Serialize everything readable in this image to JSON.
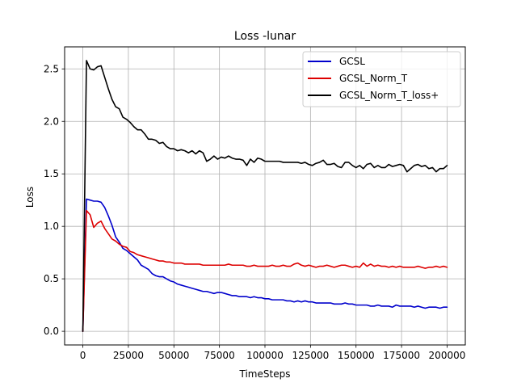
{
  "chart_data": {
    "type": "line",
    "title": "Loss -lunar",
    "xlabel": "TimeSteps",
    "ylabel": "Loss",
    "xlim": [
      -10000,
      210000
    ],
    "ylim": [
      -0.13,
      2.71
    ],
    "xticks": [
      0,
      25000,
      50000,
      75000,
      100000,
      125000,
      150000,
      175000,
      200000
    ],
    "yticks": [
      0.0,
      0.5,
      1.0,
      1.5,
      2.0,
      2.5
    ],
    "xtick_labels": [
      "0",
      "25000",
      "50000",
      "75000",
      "100000",
      "125000",
      "150000",
      "175000",
      "200000"
    ],
    "ytick_labels": [
      "0.0",
      "0.5",
      "1.0",
      "1.5",
      "2.0",
      "2.5"
    ],
    "grid": true,
    "legend_position": "top-right",
    "series": [
      {
        "name": "GCSL",
        "color": "#0000cc",
        "points": [
          [
            0,
            0.0
          ],
          [
            2000,
            1.26
          ],
          [
            4000,
            1.25
          ],
          [
            6000,
            1.24
          ],
          [
            8000,
            1.24
          ],
          [
            10000,
            1.23
          ],
          [
            12000,
            1.18
          ],
          [
            14000,
            1.1
          ],
          [
            16000,
            1.01
          ],
          [
            18000,
            0.9
          ],
          [
            20000,
            0.85
          ],
          [
            22000,
            0.79
          ],
          [
            24000,
            0.77
          ],
          [
            26000,
            0.74
          ],
          [
            28000,
            0.71
          ],
          [
            30000,
            0.68
          ],
          [
            32000,
            0.63
          ],
          [
            34000,
            0.61
          ],
          [
            36000,
            0.59
          ],
          [
            38000,
            0.55
          ],
          [
            40000,
            0.53
          ],
          [
            42000,
            0.52
          ],
          [
            44000,
            0.52
          ],
          [
            46000,
            0.5
          ],
          [
            48000,
            0.48
          ],
          [
            50000,
            0.47
          ],
          [
            52000,
            0.45
          ],
          [
            54000,
            0.44
          ],
          [
            56000,
            0.43
          ],
          [
            58000,
            0.42
          ],
          [
            60000,
            0.41
          ],
          [
            62000,
            0.4
          ],
          [
            64000,
            0.39
          ],
          [
            66000,
            0.38
          ],
          [
            68000,
            0.38
          ],
          [
            70000,
            0.37
          ],
          [
            72000,
            0.36
          ],
          [
            74000,
            0.37
          ],
          [
            76000,
            0.37
          ],
          [
            78000,
            0.36
          ],
          [
            80000,
            0.35
          ],
          [
            82000,
            0.34
          ],
          [
            84000,
            0.34
          ],
          [
            86000,
            0.33
          ],
          [
            88000,
            0.33
          ],
          [
            90000,
            0.33
          ],
          [
            92000,
            0.32
          ],
          [
            94000,
            0.33
          ],
          [
            96000,
            0.32
          ],
          [
            98000,
            0.32
          ],
          [
            100000,
            0.31
          ],
          [
            102000,
            0.31
          ],
          [
            104000,
            0.3
          ],
          [
            106000,
            0.3
          ],
          [
            108000,
            0.3
          ],
          [
            110000,
            0.3
          ],
          [
            112000,
            0.29
          ],
          [
            114000,
            0.29
          ],
          [
            116000,
            0.28
          ],
          [
            118000,
            0.29
          ],
          [
            120000,
            0.28
          ],
          [
            122000,
            0.29
          ],
          [
            124000,
            0.28
          ],
          [
            126000,
            0.28
          ],
          [
            128000,
            0.27
          ],
          [
            130000,
            0.27
          ],
          [
            132000,
            0.27
          ],
          [
            134000,
            0.27
          ],
          [
            136000,
            0.27
          ],
          [
            138000,
            0.26
          ],
          [
            140000,
            0.26
          ],
          [
            142000,
            0.26
          ],
          [
            144000,
            0.27
          ],
          [
            146000,
            0.26
          ],
          [
            148000,
            0.26
          ],
          [
            150000,
            0.25
          ],
          [
            152000,
            0.25
          ],
          [
            154000,
            0.25
          ],
          [
            156000,
            0.25
          ],
          [
            158000,
            0.24
          ],
          [
            160000,
            0.24
          ],
          [
            162000,
            0.25
          ],
          [
            164000,
            0.24
          ],
          [
            166000,
            0.24
          ],
          [
            168000,
            0.24
          ],
          [
            170000,
            0.23
          ],
          [
            172000,
            0.25
          ],
          [
            174000,
            0.24
          ],
          [
            176000,
            0.24
          ],
          [
            178000,
            0.24
          ],
          [
            180000,
            0.24
          ],
          [
            182000,
            0.23
          ],
          [
            184000,
            0.24
          ],
          [
            186000,
            0.23
          ],
          [
            188000,
            0.22
          ],
          [
            190000,
            0.23
          ],
          [
            192000,
            0.23
          ],
          [
            194000,
            0.23
          ],
          [
            196000,
            0.22
          ],
          [
            198000,
            0.23
          ],
          [
            200000,
            0.23
          ]
        ]
      },
      {
        "name": "GCSL_Norm_T",
        "color": "#dd0000",
        "points": [
          [
            0,
            0.0
          ],
          [
            2000,
            1.15
          ],
          [
            4000,
            1.11
          ],
          [
            6000,
            0.99
          ],
          [
            8000,
            1.03
          ],
          [
            10000,
            1.05
          ],
          [
            12000,
            0.98
          ],
          [
            14000,
            0.93
          ],
          [
            16000,
            0.88
          ],
          [
            18000,
            0.86
          ],
          [
            20000,
            0.83
          ],
          [
            22000,
            0.81
          ],
          [
            24000,
            0.8
          ],
          [
            26000,
            0.76
          ],
          [
            28000,
            0.75
          ],
          [
            30000,
            0.73
          ],
          [
            32000,
            0.72
          ],
          [
            34000,
            0.71
          ],
          [
            36000,
            0.7
          ],
          [
            38000,
            0.69
          ],
          [
            40000,
            0.68
          ],
          [
            42000,
            0.67
          ],
          [
            44000,
            0.67
          ],
          [
            46000,
            0.66
          ],
          [
            48000,
            0.66
          ],
          [
            50000,
            0.65
          ],
          [
            52000,
            0.65
          ],
          [
            54000,
            0.65
          ],
          [
            56000,
            0.64
          ],
          [
            58000,
            0.64
          ],
          [
            60000,
            0.64
          ],
          [
            62000,
            0.64
          ],
          [
            64000,
            0.64
          ],
          [
            66000,
            0.63
          ],
          [
            68000,
            0.63
          ],
          [
            70000,
            0.63
          ],
          [
            72000,
            0.63
          ],
          [
            74000,
            0.63
          ],
          [
            76000,
            0.63
          ],
          [
            78000,
            0.63
          ],
          [
            80000,
            0.64
          ],
          [
            82000,
            0.63
          ],
          [
            84000,
            0.63
          ],
          [
            86000,
            0.63
          ],
          [
            88000,
            0.63
          ],
          [
            90000,
            0.62
          ],
          [
            92000,
            0.62
          ],
          [
            94000,
            0.63
          ],
          [
            96000,
            0.62
          ],
          [
            98000,
            0.62
          ],
          [
            100000,
            0.62
          ],
          [
            102000,
            0.62
          ],
          [
            104000,
            0.63
          ],
          [
            106000,
            0.62
          ],
          [
            108000,
            0.62
          ],
          [
            110000,
            0.63
          ],
          [
            112000,
            0.62
          ],
          [
            114000,
            0.62
          ],
          [
            116000,
            0.64
          ],
          [
            118000,
            0.65
          ],
          [
            120000,
            0.63
          ],
          [
            122000,
            0.62
          ],
          [
            124000,
            0.63
          ],
          [
            126000,
            0.62
          ],
          [
            128000,
            0.61
          ],
          [
            130000,
            0.62
          ],
          [
            132000,
            0.62
          ],
          [
            134000,
            0.63
          ],
          [
            136000,
            0.62
          ],
          [
            138000,
            0.61
          ],
          [
            140000,
            0.62
          ],
          [
            142000,
            0.63
          ],
          [
            144000,
            0.63
          ],
          [
            146000,
            0.62
          ],
          [
            148000,
            0.61
          ],
          [
            150000,
            0.62
          ],
          [
            152000,
            0.61
          ],
          [
            154000,
            0.65
          ],
          [
            156000,
            0.62
          ],
          [
            158000,
            0.64
          ],
          [
            160000,
            0.62
          ],
          [
            162000,
            0.63
          ],
          [
            164000,
            0.62
          ],
          [
            166000,
            0.62
          ],
          [
            168000,
            0.61
          ],
          [
            170000,
            0.62
          ],
          [
            172000,
            0.61
          ],
          [
            174000,
            0.62
          ],
          [
            176000,
            0.61
          ],
          [
            178000,
            0.61
          ],
          [
            180000,
            0.61
          ],
          [
            182000,
            0.61
          ],
          [
            184000,
            0.62
          ],
          [
            186000,
            0.61
          ],
          [
            188000,
            0.6
          ],
          [
            190000,
            0.61
          ],
          [
            192000,
            0.61
          ],
          [
            194000,
            0.62
          ],
          [
            196000,
            0.61
          ],
          [
            198000,
            0.62
          ],
          [
            200000,
            0.61
          ]
        ]
      },
      {
        "name": "GCSL_Norm_T_loss+",
        "color": "#000000",
        "points": [
          [
            0,
            0.0
          ],
          [
            2000,
            2.58
          ],
          [
            4000,
            2.5
          ],
          [
            6000,
            2.49
          ],
          [
            8000,
            2.52
          ],
          [
            10000,
            2.53
          ],
          [
            12000,
            2.42
          ],
          [
            14000,
            2.31
          ],
          [
            16000,
            2.21
          ],
          [
            18000,
            2.14
          ],
          [
            20000,
            2.12
          ],
          [
            22000,
            2.04
          ],
          [
            24000,
            2.02
          ],
          [
            26000,
            1.99
          ],
          [
            28000,
            1.95
          ],
          [
            30000,
            1.92
          ],
          [
            32000,
            1.92
          ],
          [
            34000,
            1.88
          ],
          [
            36000,
            1.83
          ],
          [
            38000,
            1.83
          ],
          [
            40000,
            1.82
          ],
          [
            42000,
            1.79
          ],
          [
            44000,
            1.8
          ],
          [
            46000,
            1.76
          ],
          [
            48000,
            1.74
          ],
          [
            50000,
            1.74
          ],
          [
            52000,
            1.72
          ],
          [
            54000,
            1.73
          ],
          [
            56000,
            1.72
          ],
          [
            58000,
            1.7
          ],
          [
            60000,
            1.72
          ],
          [
            62000,
            1.69
          ],
          [
            64000,
            1.72
          ],
          [
            66000,
            1.7
          ],
          [
            68000,
            1.62
          ],
          [
            70000,
            1.64
          ],
          [
            72000,
            1.67
          ],
          [
            74000,
            1.64
          ],
          [
            76000,
            1.66
          ],
          [
            78000,
            1.65
          ],
          [
            80000,
            1.67
          ],
          [
            82000,
            1.65
          ],
          [
            84000,
            1.64
          ],
          [
            86000,
            1.64
          ],
          [
            88000,
            1.63
          ],
          [
            90000,
            1.58
          ],
          [
            92000,
            1.64
          ],
          [
            94000,
            1.61
          ],
          [
            96000,
            1.65
          ],
          [
            98000,
            1.64
          ],
          [
            100000,
            1.62
          ],
          [
            102000,
            1.62
          ],
          [
            104000,
            1.62
          ],
          [
            106000,
            1.62
          ],
          [
            108000,
            1.62
          ],
          [
            110000,
            1.61
          ],
          [
            112000,
            1.61
          ],
          [
            114000,
            1.61
          ],
          [
            116000,
            1.61
          ],
          [
            118000,
            1.61
          ],
          [
            120000,
            1.6
          ],
          [
            122000,
            1.61
          ],
          [
            124000,
            1.59
          ],
          [
            126000,
            1.58
          ],
          [
            128000,
            1.6
          ],
          [
            130000,
            1.61
          ],
          [
            132000,
            1.63
          ],
          [
            134000,
            1.59
          ],
          [
            136000,
            1.59
          ],
          [
            138000,
            1.6
          ],
          [
            140000,
            1.57
          ],
          [
            142000,
            1.56
          ],
          [
            144000,
            1.61
          ],
          [
            146000,
            1.61
          ],
          [
            148000,
            1.58
          ],
          [
            150000,
            1.56
          ],
          [
            152000,
            1.58
          ],
          [
            154000,
            1.55
          ],
          [
            156000,
            1.59
          ],
          [
            158000,
            1.6
          ],
          [
            160000,
            1.56
          ],
          [
            162000,
            1.58
          ],
          [
            164000,
            1.56
          ],
          [
            166000,
            1.56
          ],
          [
            168000,
            1.59
          ],
          [
            170000,
            1.57
          ],
          [
            172000,
            1.58
          ],
          [
            174000,
            1.59
          ],
          [
            176000,
            1.58
          ],
          [
            178000,
            1.52
          ],
          [
            180000,
            1.55
          ],
          [
            182000,
            1.58
          ],
          [
            184000,
            1.59
          ],
          [
            186000,
            1.57
          ],
          [
            188000,
            1.58
          ],
          [
            190000,
            1.55
          ],
          [
            192000,
            1.56
          ],
          [
            194000,
            1.52
          ],
          [
            196000,
            1.55
          ],
          [
            198000,
            1.55
          ],
          [
            200000,
            1.58
          ]
        ]
      }
    ]
  }
}
